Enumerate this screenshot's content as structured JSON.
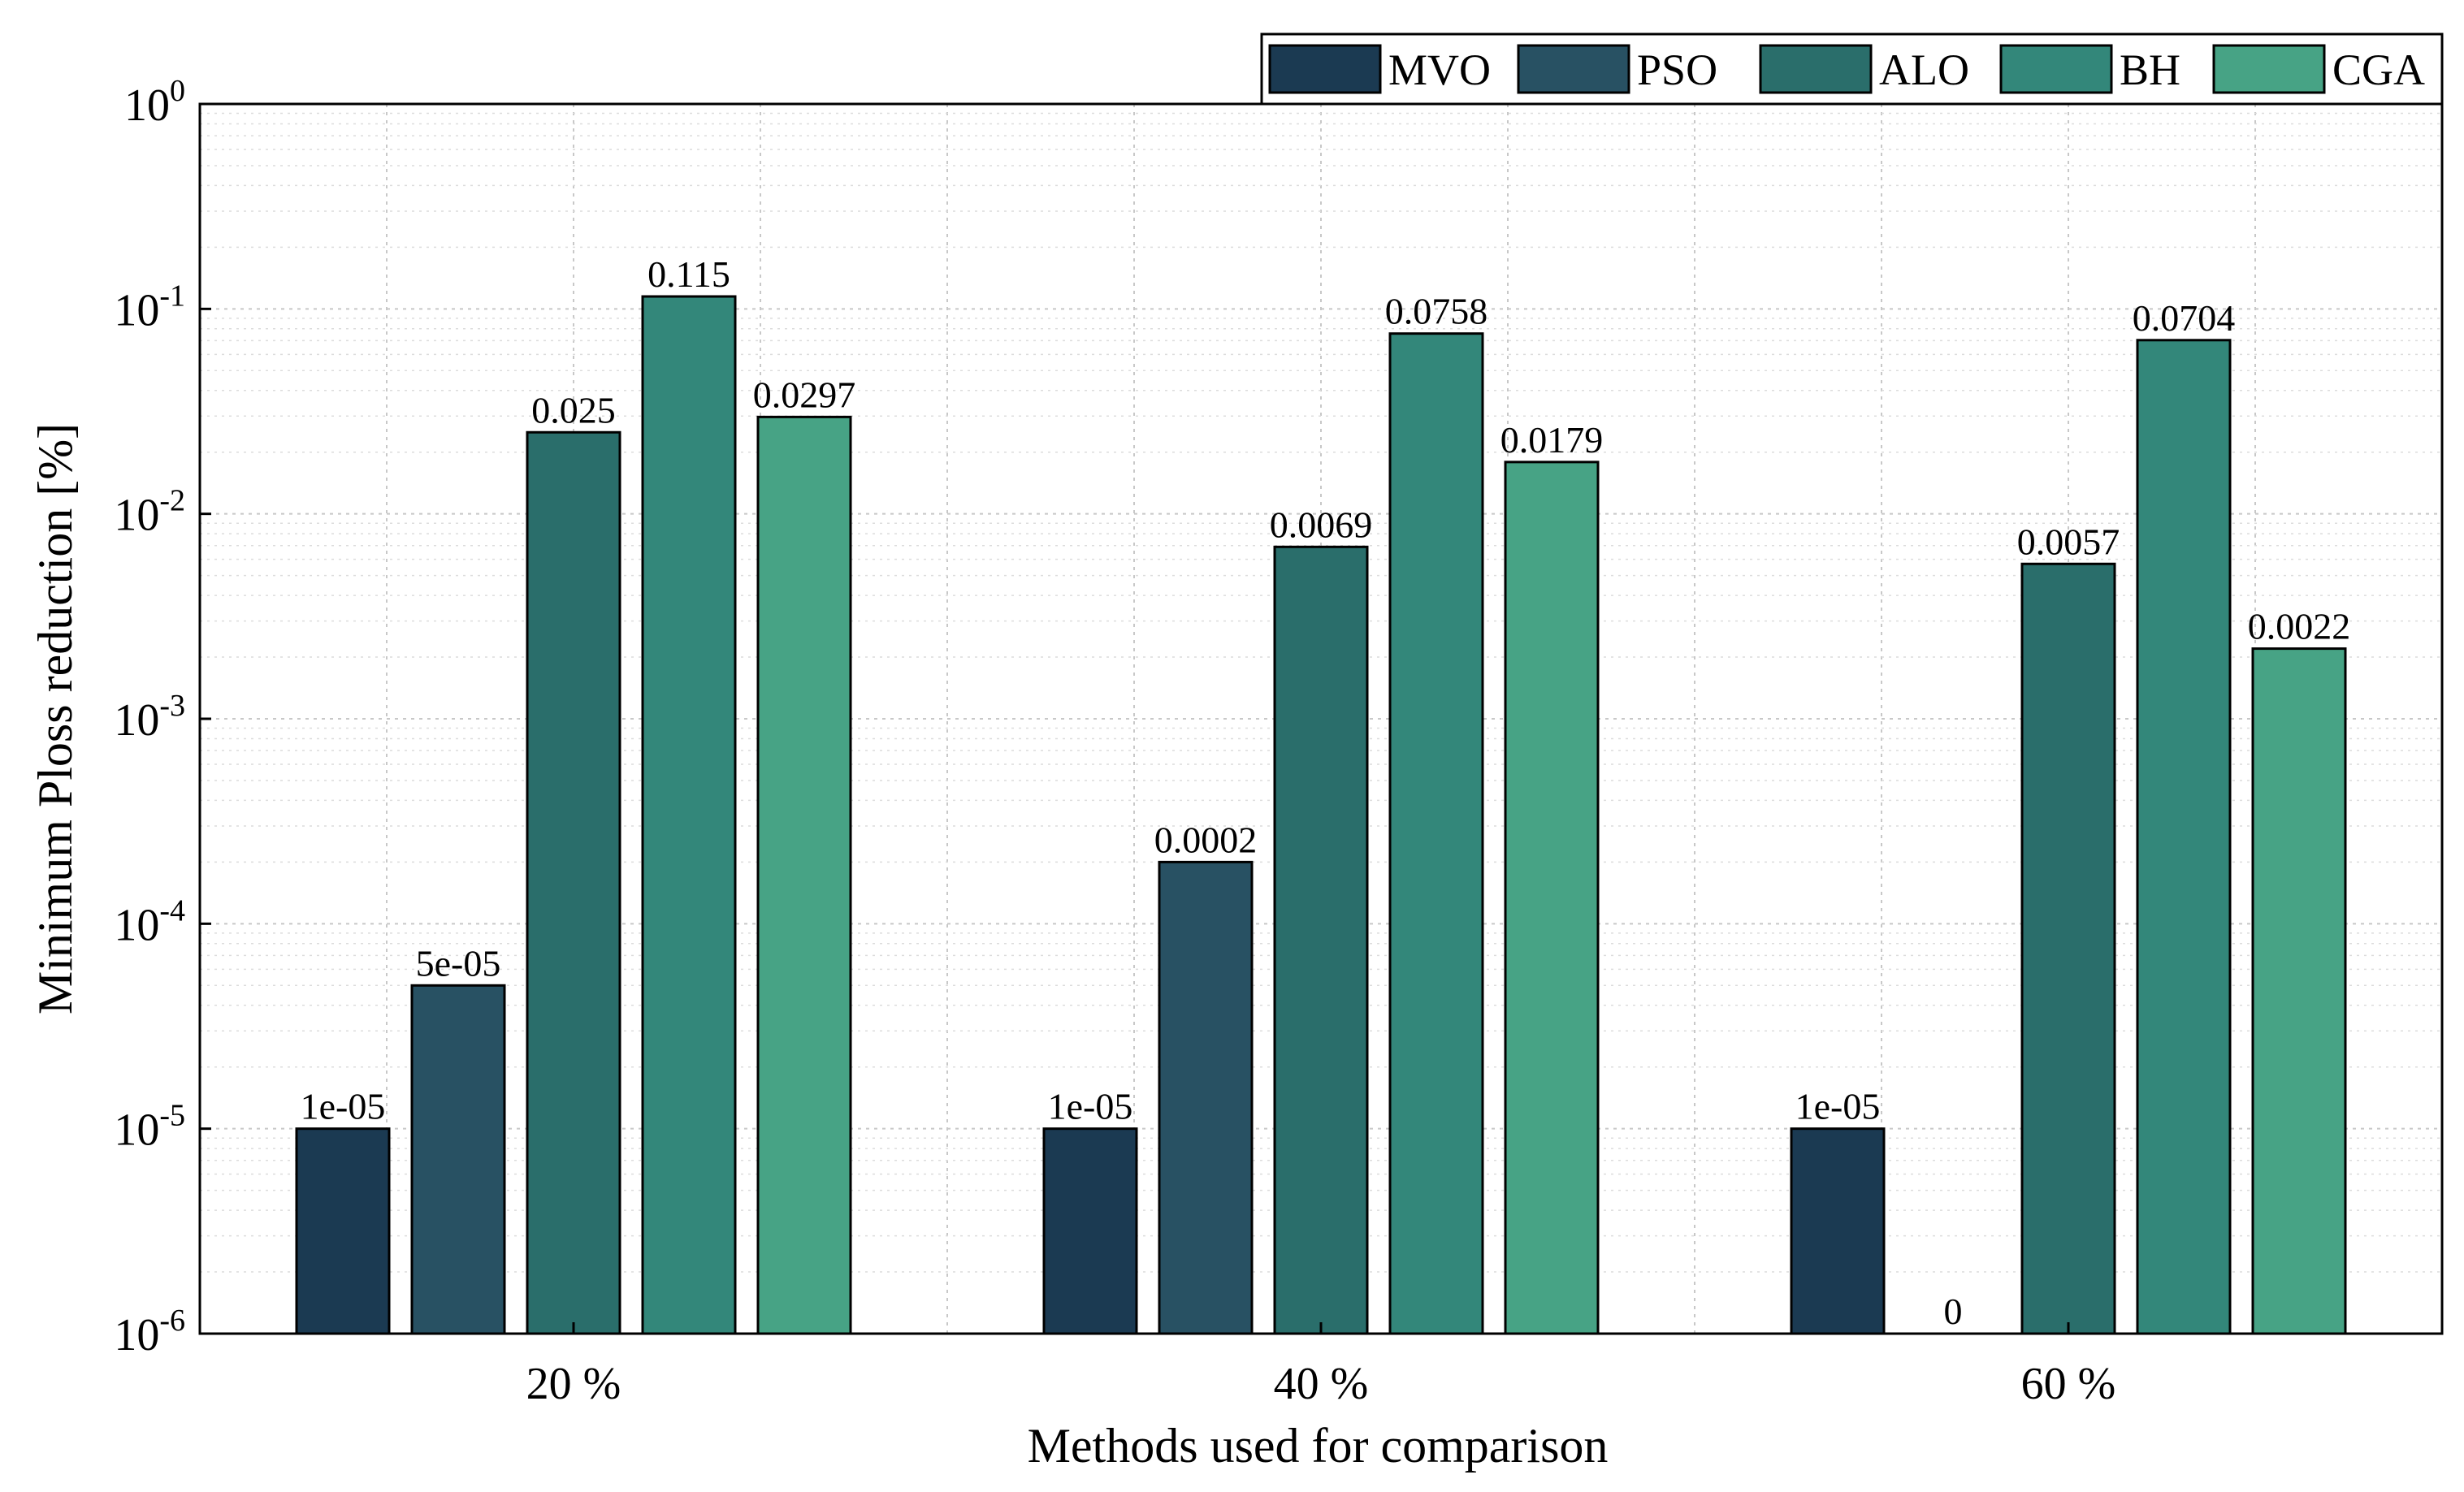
{
  "chart_data": {
    "type": "bar",
    "scale": "log",
    "title": "",
    "xlabel": "Methods used for comparison",
    "ylabel": "Minimum Ploss reduction [%]",
    "ylim": [
      1e-06,
      1
    ],
    "categories": [
      "20 %",
      "40 %",
      "60 %"
    ],
    "series": [
      {
        "name": "MVO",
        "color": "#1b3a52",
        "values": [
          1e-05,
          1e-05,
          1e-05
        ],
        "labels": [
          "1e-05",
          "1e-05",
          "1e-05"
        ]
      },
      {
        "name": "PSO",
        "color": "#285163",
        "values": [
          5e-05,
          0.0002,
          0
        ],
        "labels": [
          "5e-05",
          "0.0002",
          "0"
        ]
      },
      {
        "name": "ALO",
        "color": "#2a6e6b",
        "values": [
          0.025,
          0.0069,
          0.0057
        ],
        "labels": [
          "0.025",
          "0.0069",
          "0.0057"
        ]
      },
      {
        "name": "BH",
        "color": "#33877a",
        "values": [
          0.115,
          0.0758,
          0.0704
        ],
        "labels": [
          "0.115",
          "0.0758",
          "0.0704"
        ]
      },
      {
        "name": "CGA",
        "color": "#47a385",
        "values": [
          0.0297,
          0.0179,
          0.0022
        ],
        "labels": [
          "0.0297",
          "0.0179",
          "0.0022"
        ]
      }
    ],
    "yticks": [
      {
        "base": "10",
        "exp": "0"
      },
      {
        "base": "10",
        "exp": "-1"
      },
      {
        "base": "10",
        "exp": "-2"
      },
      {
        "base": "10",
        "exp": "-3"
      },
      {
        "base": "10",
        "exp": "-4"
      },
      {
        "base": "10",
        "exp": "-5"
      },
      {
        "base": "10",
        "exp": "-6"
      }
    ],
    "grid": true,
    "legend": "top-right"
  }
}
